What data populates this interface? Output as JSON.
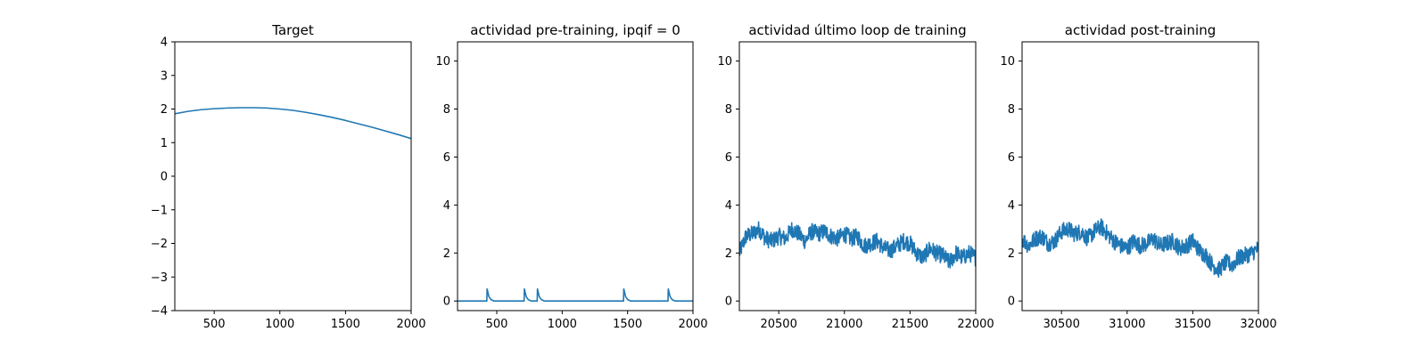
{
  "figure": {
    "line_color": "#1f77b4"
  },
  "chart_data": [
    {
      "type": "line",
      "title": "Target",
      "xlabel": "",
      "ylabel": "",
      "xlim": [
        200,
        2000
      ],
      "ylim": [
        -4,
        4
      ],
      "xticks": [
        500,
        1000,
        1500,
        2000
      ],
      "yticks": [
        -4,
        -3,
        -2,
        -1,
        0,
        1,
        2,
        3,
        4
      ],
      "xtick_labels": [
        "500",
        "1000",
        "1500",
        "2000"
      ],
      "ytick_labels": [
        "−4",
        "−3",
        "−2",
        "−1",
        "0",
        "1",
        "2",
        "3",
        "4"
      ],
      "grid": false,
      "series": [
        {
          "x": [
            200,
            300,
            400,
            500,
            600,
            700,
            750,
            800,
            900,
            1000,
            1100,
            1200,
            1300,
            1400,
            1500,
            1600,
            1700,
            1800,
            1900,
            2000
          ],
          "values": [
            1.86,
            1.93,
            1.98,
            2.01,
            2.03,
            2.04,
            2.04,
            2.04,
            2.03,
            2.0,
            1.96,
            1.9,
            1.83,
            1.75,
            1.66,
            1.56,
            1.46,
            1.35,
            1.24,
            1.12
          ]
        }
      ]
    },
    {
      "type": "line",
      "title": "actividad pre-training, ipqif = 0",
      "xlabel": "",
      "ylabel": "",
      "xlim": [
        200,
        2000
      ],
      "ylim": [
        -0.4,
        10.8
      ],
      "xticks": [
        500,
        1000,
        1500,
        2000
      ],
      "yticks": [
        0,
        2,
        4,
        6,
        8,
        10
      ],
      "xtick_labels": [
        "500",
        "1000",
        "1500",
        "2000"
      ],
      "ytick_labels": [
        "0",
        "2",
        "4",
        "6",
        "8",
        "10"
      ],
      "grid": false,
      "series": [
        {
          "x": [
            200,
            424,
            426,
            440,
            455,
            480,
            709,
            711,
            725,
            740,
            765,
            809,
            811,
            825,
            840,
            865,
            1469,
            1471,
            1485,
            1500,
            1525,
            1809,
            1811,
            1825,
            1840,
            1865,
            2000
          ],
          "values": [
            0,
            0,
            0.5,
            0.18,
            0.06,
            0,
            0,
            0.5,
            0.18,
            0.06,
            0,
            0,
            0.5,
            0.18,
            0.06,
            0,
            0,
            0.5,
            0.18,
            0.06,
            0,
            0,
            0.5,
            0.18,
            0.06,
            0,
            0
          ]
        }
      ]
    },
    {
      "type": "line",
      "title": "actividad último loop de training",
      "xlabel": "",
      "ylabel": "",
      "xlim": [
        20200,
        22000
      ],
      "ylim": [
        -0.4,
        10.8
      ],
      "xticks": [
        20500,
        21000,
        21500,
        22000
      ],
      "yticks": [
        0,
        2,
        4,
        6,
        8,
        10
      ],
      "xtick_labels": [
        "20500",
        "21000",
        "21500",
        "22000"
      ],
      "ytick_labels": [
        "0",
        "2",
        "4",
        "6",
        "8",
        "10"
      ],
      "grid": false,
      "series": [
        {
          "x": [
            20200,
            20250,
            20300,
            20350,
            20400,
            20450,
            20500,
            20550,
            20600,
            20650,
            20700,
            20750,
            20800,
            20850,
            20900,
            20950,
            21000,
            21050,
            21100,
            21150,
            21200,
            21250,
            21300,
            21350,
            21400,
            21450,
            21500,
            21550,
            21600,
            21650,
            21700,
            21750,
            21800,
            21850,
            21900,
            21950,
            22000
          ],
          "values": [
            2.0,
            2.7,
            2.8,
            3.0,
            2.6,
            2.5,
            2.7,
            2.6,
            3.0,
            2.8,
            2.5,
            2.9,
            2.8,
            2.9,
            2.7,
            2.6,
            2.8,
            2.6,
            2.7,
            2.3,
            2.4,
            2.5,
            2.2,
            2.1,
            2.3,
            2.5,
            2.4,
            2.0,
            1.8,
            2.2,
            2.0,
            1.9,
            1.6,
            2.0,
            1.8,
            2.0,
            1.8
          ],
          "noise_amplitude": 0.35
        }
      ]
    },
    {
      "type": "line",
      "title": "actividad post-training",
      "xlabel": "",
      "ylabel": "",
      "xlim": [
        30200,
        32000
      ],
      "ylim": [
        -0.4,
        10.8
      ],
      "xticks": [
        30500,
        31000,
        31500,
        32000
      ],
      "yticks": [
        0,
        2,
        4,
        6,
        8,
        10
      ],
      "xtick_labels": [
        "30500",
        "31000",
        "31500",
        "32000"
      ],
      "ytick_labels": [
        "0",
        "2",
        "4",
        "6",
        "8",
        "10"
      ],
      "grid": false,
      "series": [
        {
          "x": [
            30200,
            30250,
            30300,
            30350,
            30400,
            30450,
            30500,
            30550,
            30600,
            30650,
            30700,
            30750,
            30800,
            30850,
            30900,
            30950,
            31000,
            31050,
            31100,
            31150,
            31200,
            31250,
            31300,
            31350,
            31400,
            31450,
            31500,
            31550,
            31600,
            31650,
            31700,
            31750,
            31800,
            31850,
            31900,
            31950,
            32000
          ],
          "values": [
            2.6,
            2.3,
            2.6,
            2.7,
            2.4,
            2.5,
            2.9,
            3.0,
            2.8,
            2.9,
            2.6,
            2.9,
            3.1,
            2.8,
            2.5,
            2.3,
            2.2,
            2.5,
            2.3,
            2.4,
            2.6,
            2.3,
            2.4,
            2.5,
            2.2,
            2.3,
            2.5,
            2.1,
            1.9,
            1.5,
            1.3,
            1.6,
            1.5,
            1.8,
            1.9,
            2.0,
            2.2
          ],
          "noise_amplitude": 0.35
        }
      ]
    }
  ]
}
